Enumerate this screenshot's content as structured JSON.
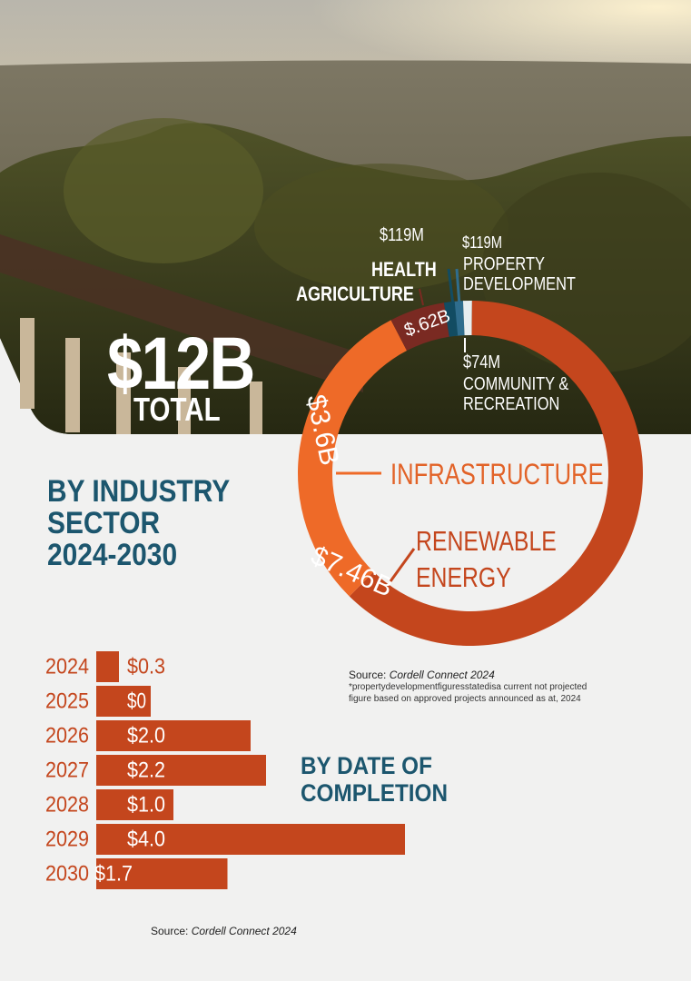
{
  "headline": {
    "value": "$12B",
    "label": "TOTAL"
  },
  "sector_title": "BY INDUSTRY\nSECTOR\n2024-2030",
  "date_title": "BY DATE OF\nCOMPLETION",
  "source_label": "Source: ",
  "source_name": "Cordell Connect 2024",
  "footnote": "*propertydevelopmentfiguresstatedisa current not projected\nfigure based on approved projects announced as at, 2024",
  "colors": {
    "renewable": "#c4461d",
    "infrastructure": "#ee6a28",
    "agriculture": "#7a2a22",
    "health": "#124c62",
    "property": "#2f6d8d",
    "community": "#e8eef0",
    "bars": "#c4461d",
    "title_blue": "#1c566e"
  },
  "chart_data": [
    {
      "type": "pie",
      "title": "BY INDUSTRY SECTOR 2024-2030",
      "total_label": "$12B TOTAL",
      "slices": [
        {
          "name": "RENEWABLE ENERGY",
          "value": 7.46,
          "value_label": "$7.46B",
          "color": "#c4461d"
        },
        {
          "name": "INFRASTRUCTURE",
          "value": 3.6,
          "value_label": "$3.6B",
          "color": "#ee6a28"
        },
        {
          "name": "AGRICULTURE",
          "value": 0.62,
          "value_label": "$.62B",
          "color": "#7a2a22"
        },
        {
          "name": "HEALTH",
          "value": 0.119,
          "value_label": "$119M",
          "color": "#124c62"
        },
        {
          "name": "PROPERTY DEVELOPMENT",
          "value": 0.119,
          "value_label": "$119M",
          "color": "#2f6d8d"
        },
        {
          "name": "COMMUNITY & RECREATION",
          "value": 0.074,
          "value_label": "$74M",
          "color": "#e8eef0"
        }
      ]
    },
    {
      "type": "bar",
      "orientation": "horizontal",
      "title": "BY DATE OF COMPLETION",
      "categories": [
        "2024",
        "2025",
        "2026",
        "2027",
        "2028",
        "2029",
        "2030"
      ],
      "values": [
        0.3,
        0,
        2.0,
        2.2,
        1.0,
        4.0,
        1.7
      ],
      "value_labels": [
        "$0.3",
        "$0",
        "$2.0",
        "$2.2",
        "$1.0",
        "$4.0",
        "$1.7"
      ]
    }
  ]
}
